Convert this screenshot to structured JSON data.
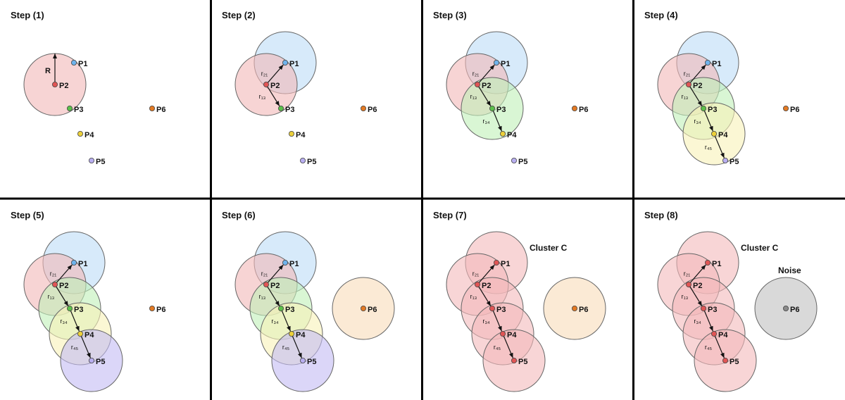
{
  "panels": [
    {
      "title": "Step (1)",
      "circles": [
        {
          "center": "P2",
          "fill": "pink"
        }
      ],
      "arrows": [
        {
          "from": "P2",
          "to": "R_TIP",
          "label": "R"
        }
      ],
      "overrides": {},
      "annotations": []
    },
    {
      "title": "Step (2)",
      "circles": [
        {
          "center": "P1",
          "fill": "blue"
        },
        {
          "center": "P2",
          "fill": "pink"
        }
      ],
      "arrows": [
        {
          "from": "P2",
          "to": "P1",
          "label": "r₂₁"
        },
        {
          "from": "P2",
          "to": "P3",
          "label": "r₁₃"
        }
      ],
      "overrides": {},
      "annotations": []
    },
    {
      "title": "Step (3)",
      "circles": [
        {
          "center": "P1",
          "fill": "blue"
        },
        {
          "center": "P2",
          "fill": "pink"
        },
        {
          "center": "P3",
          "fill": "green"
        }
      ],
      "arrows": [
        {
          "from": "P2",
          "to": "P1",
          "label": "r₂₁"
        },
        {
          "from": "P2",
          "to": "P3",
          "label": "r₁₃"
        },
        {
          "from": "P3",
          "to": "P4",
          "label": "r₃₄"
        }
      ],
      "overrides": {},
      "annotations": []
    },
    {
      "title": "Step (4)",
      "circles": [
        {
          "center": "P1",
          "fill": "blue"
        },
        {
          "center": "P2",
          "fill": "pink"
        },
        {
          "center": "P3",
          "fill": "green"
        },
        {
          "center": "P4",
          "fill": "yellow"
        }
      ],
      "arrows": [
        {
          "from": "P2",
          "to": "P1",
          "label": "r₂₁"
        },
        {
          "from": "P2",
          "to": "P3",
          "label": "r₁₃"
        },
        {
          "from": "P3",
          "to": "P4",
          "label": "r₃₄"
        },
        {
          "from": "P4",
          "to": "P5",
          "label": "r₄₅"
        }
      ],
      "overrides": {},
      "annotations": []
    },
    {
      "title": "Step (5)",
      "circles": [
        {
          "center": "P1",
          "fill": "blue"
        },
        {
          "center": "P2",
          "fill": "pink"
        },
        {
          "center": "P3",
          "fill": "green"
        },
        {
          "center": "P4",
          "fill": "yellow"
        },
        {
          "center": "P5",
          "fill": "purple"
        }
      ],
      "arrows": [
        {
          "from": "P2",
          "to": "P1",
          "label": "r₂₁"
        },
        {
          "from": "P2",
          "to": "P3",
          "label": "r₁₃"
        },
        {
          "from": "P3",
          "to": "P4",
          "label": "r₃₄"
        },
        {
          "from": "P4",
          "to": "P5",
          "label": "r₄₅"
        }
      ],
      "overrides": {},
      "annotations": []
    },
    {
      "title": "Step (6)",
      "circles": [
        {
          "center": "P1",
          "fill": "blue"
        },
        {
          "center": "P2",
          "fill": "pink"
        },
        {
          "center": "P3",
          "fill": "green"
        },
        {
          "center": "P4",
          "fill": "yellow"
        },
        {
          "center": "P5",
          "fill": "purple"
        },
        {
          "center": "P6",
          "fill": "orange"
        }
      ],
      "arrows": [
        {
          "from": "P2",
          "to": "P1",
          "label": "r₂₁"
        },
        {
          "from": "P2",
          "to": "P3",
          "label": "r₁₃"
        },
        {
          "from": "P3",
          "to": "P4",
          "label": "r₃₄"
        },
        {
          "from": "P4",
          "to": "P5",
          "label": "r₄₅"
        }
      ],
      "overrides": {},
      "annotations": []
    },
    {
      "title": "Step (7)",
      "circles": [
        {
          "center": "P1",
          "fill": "cluster"
        },
        {
          "center": "P2",
          "fill": "cluster"
        },
        {
          "center": "P3",
          "fill": "cluster"
        },
        {
          "center": "P4",
          "fill": "cluster"
        },
        {
          "center": "P5",
          "fill": "cluster"
        },
        {
          "center": "P6",
          "fill": "orange"
        }
      ],
      "arrows": [
        {
          "from": "P2",
          "to": "P1",
          "label": "r₂₁"
        },
        {
          "from": "P2",
          "to": "P3",
          "label": "r₁₃"
        },
        {
          "from": "P3",
          "to": "P4",
          "label": "r₃₄"
        },
        {
          "from": "P4",
          "to": "P5",
          "label": "r₄₅"
        }
      ],
      "overrides": {
        "P1": "cluster_point",
        "P2": "cluster_point",
        "P3": "cluster_point",
        "P4": "cluster_point",
        "P5": "cluster_point"
      },
      "annotations": [
        {
          "text": "Cluster C",
          "anchor": "cluster"
        }
      ]
    },
    {
      "title": "Step (8)",
      "circles": [
        {
          "center": "P1",
          "fill": "cluster"
        },
        {
          "center": "P2",
          "fill": "cluster"
        },
        {
          "center": "P3",
          "fill": "cluster"
        },
        {
          "center": "P4",
          "fill": "cluster"
        },
        {
          "center": "P5",
          "fill": "cluster"
        },
        {
          "center": "P6",
          "fill": "noise"
        }
      ],
      "arrows": [
        {
          "from": "P2",
          "to": "P1",
          "label": "r₂₁"
        },
        {
          "from": "P2",
          "to": "P3",
          "label": "r₁₃"
        },
        {
          "from": "P3",
          "to": "P4",
          "label": "r₃₄"
        },
        {
          "from": "P4",
          "to": "P5",
          "label": "r₄₅"
        }
      ],
      "overrides": {
        "P1": "cluster_point",
        "P2": "cluster_point",
        "P3": "cluster_point",
        "P4": "cluster_point",
        "P5": "cluster_point",
        "P6": "noise_point"
      },
      "annotations": [
        {
          "text": "Cluster C",
          "anchor": "cluster"
        },
        {
          "text": "Noise",
          "anchor": "noise"
        }
      ]
    }
  ],
  "point_labels": {
    "P1": "P1",
    "P2": "P2",
    "P3": "P3",
    "P4": "P4",
    "P5": "P5",
    "P6": "P6"
  },
  "point_colors": {
    "P1": "#6fb3ec",
    "P2": "#e05555",
    "P3": "#5cc04a",
    "P4": "#ecd03a",
    "P5": "#b8aef0",
    "P6": "#e37a24",
    "cluster_point": "#e05555",
    "noise_point": "#8a8a8a"
  },
  "circle_fills": {
    "pink": "#f2b8b8",
    "blue": "#bcdcf6",
    "green": "#bff0b8",
    "yellow": "#f9f1b7",
    "purple": "#c3baf3",
    "orange": "#f8dcb9",
    "cluster": "#f3b9bb",
    "noise": "#bfbfbf"
  },
  "divider_color": "#000000"
}
